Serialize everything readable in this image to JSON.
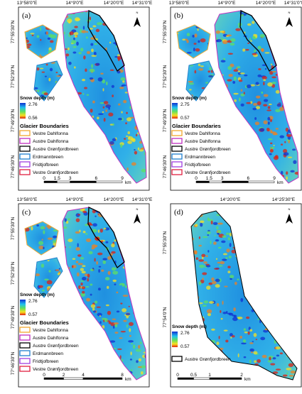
{
  "north": "N",
  "panels": [
    {
      "label": "(a)",
      "lon_labels": [
        "13°58'0\"E",
        "14°9'0\"E",
        "14°20'0\"E",
        "14°31'0\"E"
      ],
      "lat_labels": [
        "77°55'30\"N",
        "77°52'30\"N",
        "77°49'30\"N",
        "77°46'30\"N"
      ],
      "legend": {
        "title": "Snow depth (m)",
        "max": "2.76",
        "min": "0.56",
        "boundaries_title": "Glacier Boundaries",
        "boundaries": [
          {
            "name": "Vestre Dahlfonna",
            "color": "#f0a830"
          },
          {
            "name": "Austre Dahlfonna",
            "color": "#c030c0"
          },
          {
            "name": "Austre Grønfjordbreen",
            "color": "#000000"
          },
          {
            "name": "Erdmannbreen",
            "color": "#2080d0"
          },
          {
            "name": "Fridtjofbreen",
            "color": "#a040e0"
          },
          {
            "name": "Vestre Grønfjordbreen",
            "color": "#e02040"
          }
        ]
      },
      "scale": {
        "ticks": [
          "0",
          "1.5",
          "3",
          "6",
          "9"
        ],
        "unit": "km"
      }
    },
    {
      "label": "(b)",
      "lon_labels": [
        "13°58'0\"E",
        "14°9'0\"E",
        "14°20'0\"E",
        "14°31'0\"E"
      ],
      "lat_labels": [
        "77°55'30\"N",
        "77°52'30\"N",
        "77°49'30\"N",
        "77°46'30\"N"
      ],
      "legend": {
        "title": "Snow depth (m)",
        "max": "2.75",
        "min": "0.57",
        "boundaries_title": "Glacier Boundaries",
        "boundaries": [
          {
            "name": "Vestre Dahlfonna",
            "color": "#f0a830"
          },
          {
            "name": "Austre Dahlfonna",
            "color": "#c030c0"
          },
          {
            "name": "Austre Grønfjordbreen",
            "color": "#000000"
          },
          {
            "name": "Erdmannbreen",
            "color": "#2080d0"
          },
          {
            "name": "Fridtjofbreen",
            "color": "#a040e0"
          },
          {
            "name": "Vestre Grønfjordbreen",
            "color": "#e02040"
          }
        ]
      },
      "scale": {
        "ticks": [
          "0",
          "1.5",
          "3",
          "6",
          "9"
        ],
        "unit": "km"
      }
    },
    {
      "label": "(c)",
      "lon_labels": [
        "13°58'0\"E",
        "14°9'0\"E",
        "14°20'0\"E",
        "14°31'0\"E"
      ],
      "lat_labels": [
        "77°55'30\"N",
        "77°52'30\"N",
        "77°49'30\"N",
        "77°46'30\"N"
      ],
      "legend": {
        "title": "Snow depth (m)",
        "max": "2.76",
        "min": "0.57",
        "boundaries_title": "Glacier Boundaries",
        "boundaries": [
          {
            "name": "Vestre Dahlfonna",
            "color": "#f0a830"
          },
          {
            "name": "Austre Dahlfonna",
            "color": "#c030c0"
          },
          {
            "name": "Austre Grønfjordbreen",
            "color": "#000000"
          },
          {
            "name": "Erdmannbreen",
            "color": "#2080d0"
          },
          {
            "name": "Fridtjofbreen",
            "color": "#a040e0"
          },
          {
            "name": "Vestre Grønfjordbreen",
            "color": "#e02040"
          }
        ]
      },
      "scale": {
        "ticks": [
          "0",
          "2",
          "4",
          "8"
        ],
        "unit": "km"
      }
    },
    {
      "label": "(d)",
      "lon_labels": [
        "14°20'0\"E",
        "14°25'30\"E"
      ],
      "lat_labels": [
        "77°55'30\"N",
        "77°54'0\"N"
      ],
      "legend": {
        "title": "Snow depth (m)",
        "max": "2.76",
        "min": "0.57",
        "boundaries": [
          {
            "name": "Austre Grønfjordbreen",
            "color": "#000000"
          }
        ]
      },
      "scale": {
        "ticks": [
          "0",
          "0.5",
          "1",
          "2"
        ],
        "unit": "km"
      }
    }
  ]
}
